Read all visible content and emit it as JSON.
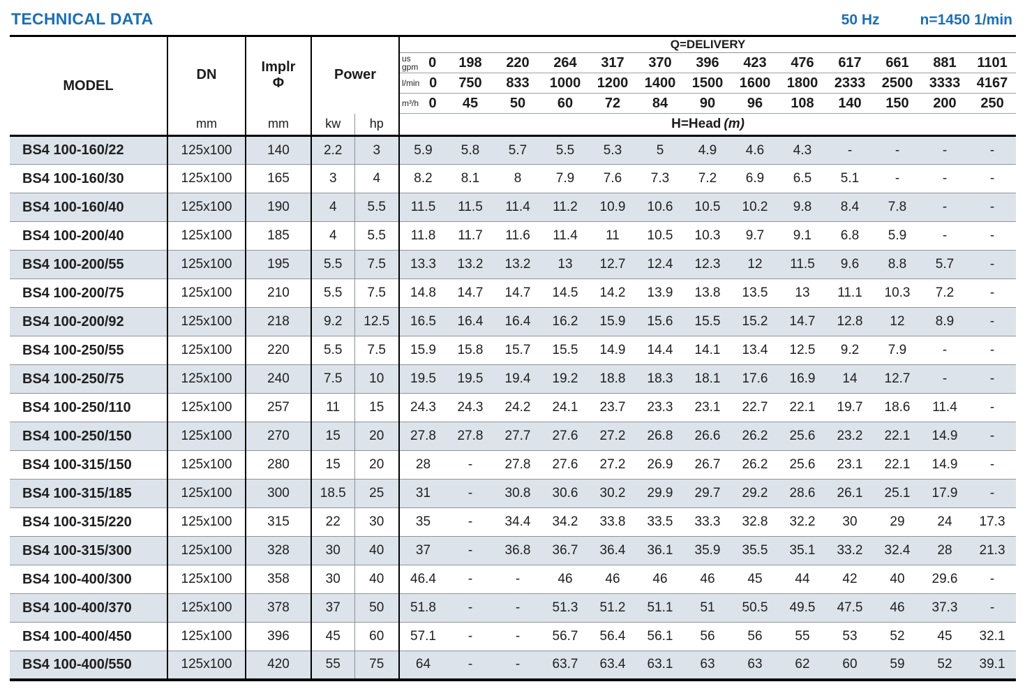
{
  "page": {
    "title": "TECHNICAL DATA",
    "freq": "50 Hz",
    "speed": "n=1450 1/min"
  },
  "colors": {
    "accent": "#1a6fb5",
    "row_shade": "#dce3ea"
  },
  "table": {
    "headers": {
      "model": "MODEL",
      "dn": "DN",
      "dn_unit": "mm",
      "implr_line1": "Implr",
      "implr_line2": "Φ",
      "implr_unit": "mm",
      "power": "Power",
      "kw": "kw",
      "hp": "hp",
      "delivery": "Q=DELIVERY",
      "head_label": "H=Head",
      "head_unit": "(m)",
      "unit_rows": [
        {
          "label": "us gpm",
          "label_lines": [
            "us",
            "gpm"
          ],
          "values": [
            "0",
            "198",
            "220",
            "264",
            "317",
            "370",
            "396",
            "423",
            "476",
            "617",
            "661",
            "881",
            "1101"
          ]
        },
        {
          "label": "l/min",
          "label_lines": [
            "l/min"
          ],
          "values": [
            "0",
            "750",
            "833",
            "1000",
            "1200",
            "1400",
            "1500",
            "1600",
            "1800",
            "2333",
            "2500",
            "3333",
            "4167"
          ]
        },
        {
          "label": "m³/h",
          "label_lines": [
            "m³/h"
          ],
          "values": [
            "0",
            "45",
            "50",
            "60",
            "72",
            "84",
            "90",
            "96",
            "108",
            "140",
            "150",
            "200",
            "250"
          ]
        }
      ]
    },
    "rows": [
      {
        "model": "BS4 100-160/22",
        "dn": "125x100",
        "implr": "140",
        "kw": "2.2",
        "hp": "3",
        "head": [
          "5.9",
          "5.8",
          "5.7",
          "5.5",
          "5.3",
          "5",
          "4.9",
          "4.6",
          "4.3",
          "-",
          "-",
          "-",
          "-"
        ]
      },
      {
        "model": "BS4 100-160/30",
        "dn": "125x100",
        "implr": "165",
        "kw": "3",
        "hp": "4",
        "head": [
          "8.2",
          "8.1",
          "8",
          "7.9",
          "7.6",
          "7.3",
          "7.2",
          "6.9",
          "6.5",
          "5.1",
          "-",
          "-",
          "-"
        ]
      },
      {
        "model": "BS4 100-160/40",
        "dn": "125x100",
        "implr": "190",
        "kw": "4",
        "hp": "5.5",
        "head": [
          "11.5",
          "11.5",
          "11.4",
          "11.2",
          "10.9",
          "10.6",
          "10.5",
          "10.2",
          "9.8",
          "8.4",
          "7.8",
          "-",
          "-"
        ]
      },
      {
        "model": "BS4 100-200/40",
        "dn": "125x100",
        "implr": "185",
        "kw": "4",
        "hp": "5.5",
        "head": [
          "11.8",
          "11.7",
          "11.6",
          "11.4",
          "11",
          "10.5",
          "10.3",
          "9.7",
          "9.1",
          "6.8",
          "5.9",
          "-",
          "-"
        ]
      },
      {
        "model": "BS4 100-200/55",
        "dn": "125x100",
        "implr": "195",
        "kw": "5.5",
        "hp": "7.5",
        "head": [
          "13.3",
          "13.2",
          "13.2",
          "13",
          "12.7",
          "12.4",
          "12.3",
          "12",
          "11.5",
          "9.6",
          "8.8",
          "5.7",
          "-"
        ]
      },
      {
        "model": "BS4 100-200/75",
        "dn": "125x100",
        "implr": "210",
        "kw": "5.5",
        "hp": "7.5",
        "head": [
          "14.8",
          "14.7",
          "14.7",
          "14.5",
          "14.2",
          "13.9",
          "13.8",
          "13.5",
          "13",
          "11.1",
          "10.3",
          "7.2",
          "-"
        ]
      },
      {
        "model": "BS4 100-200/92",
        "dn": "125x100",
        "implr": "218",
        "kw": "9.2",
        "hp": "12.5",
        "head": [
          "16.5",
          "16.4",
          "16.4",
          "16.2",
          "15.9",
          "15.6",
          "15.5",
          "15.2",
          "14.7",
          "12.8",
          "12",
          "8.9",
          "-"
        ]
      },
      {
        "model": "BS4 100-250/55",
        "dn": "125x100",
        "implr": "220",
        "kw": "5.5",
        "hp": "7.5",
        "head": [
          "15.9",
          "15.8",
          "15.7",
          "15.5",
          "14.9",
          "14.4",
          "14.1",
          "13.4",
          "12.5",
          "9.2",
          "7.9",
          "-",
          "-"
        ]
      },
      {
        "model": "BS4 100-250/75",
        "dn": "125x100",
        "implr": "240",
        "kw": "7.5",
        "hp": "10",
        "head": [
          "19.5",
          "19.5",
          "19.4",
          "19.2",
          "18.8",
          "18.3",
          "18.1",
          "17.6",
          "16.9",
          "14",
          "12.7",
          "-",
          "-"
        ]
      },
      {
        "model": "BS4 100-250/110",
        "dn": "125x100",
        "implr": "257",
        "kw": "11",
        "hp": "15",
        "head": [
          "24.3",
          "24.3",
          "24.2",
          "24.1",
          "23.7",
          "23.3",
          "23.1",
          "22.7",
          "22.1",
          "19.7",
          "18.6",
          "11.4",
          "-"
        ]
      },
      {
        "model": "BS4 100-250/150",
        "dn": "125x100",
        "implr": "270",
        "kw": "15",
        "hp": "20",
        "head": [
          "27.8",
          "27.8",
          "27.7",
          "27.6",
          "27.2",
          "26.8",
          "26.6",
          "26.2",
          "25.6",
          "23.2",
          "22.1",
          "14.9",
          "-"
        ]
      },
      {
        "model": "BS4 100-315/150",
        "dn": "125x100",
        "implr": "280",
        "kw": "15",
        "hp": "20",
        "head": [
          "28",
          "-",
          "27.8",
          "27.6",
          "27.2",
          "26.9",
          "26.7",
          "26.2",
          "25.6",
          "23.1",
          "22.1",
          "14.9",
          "-"
        ]
      },
      {
        "model": "BS4 100-315/185",
        "dn": "125x100",
        "implr": "300",
        "kw": "18.5",
        "hp": "25",
        "head": [
          "31",
          "-",
          "30.8",
          "30.6",
          "30.2",
          "29.9",
          "29.7",
          "29.2",
          "28.6",
          "26.1",
          "25.1",
          "17.9",
          "-"
        ]
      },
      {
        "model": "BS4 100-315/220",
        "dn": "125x100",
        "implr": "315",
        "kw": "22",
        "hp": "30",
        "head": [
          "35",
          "-",
          "34.4",
          "34.2",
          "33.8",
          "33.5",
          "33.3",
          "32.8",
          "32.2",
          "30",
          "29",
          "24",
          "17.3"
        ]
      },
      {
        "model": "BS4 100-315/300",
        "dn": "125x100",
        "implr": "328",
        "kw": "30",
        "hp": "40",
        "head": [
          "37",
          "-",
          "36.8",
          "36.7",
          "36.4",
          "36.1",
          "35.9",
          "35.5",
          "35.1",
          "33.2",
          "32.4",
          "28",
          "21.3"
        ]
      },
      {
        "model": "BS4 100-400/300",
        "dn": "125x100",
        "implr": "358",
        "kw": "30",
        "hp": "40",
        "head": [
          "46.4",
          "-",
          "-",
          "46",
          "46",
          "46",
          "46",
          "45",
          "44",
          "42",
          "40",
          "29.6",
          "-"
        ]
      },
      {
        "model": "BS4 100-400/370",
        "dn": "125x100",
        "implr": "378",
        "kw": "37",
        "hp": "50",
        "head": [
          "51.8",
          "-",
          "-",
          "51.3",
          "51.2",
          "51.1",
          "51",
          "50.5",
          "49.5",
          "47.5",
          "46",
          "37.3",
          "-"
        ]
      },
      {
        "model": "BS4 100-400/450",
        "dn": "125x100",
        "implr": "396",
        "kw": "45",
        "hp": "60",
        "head": [
          "57.1",
          "-",
          "-",
          "56.7",
          "56.4",
          "56.1",
          "56",
          "56",
          "55",
          "53",
          "52",
          "45",
          "32.1"
        ]
      },
      {
        "model": "BS4 100-400/550",
        "dn": "125x100",
        "implr": "420",
        "kw": "55",
        "hp": "75",
        "head": [
          "64",
          "-",
          "-",
          "63.7",
          "63.4",
          "63.1",
          "63",
          "63",
          "62",
          "60",
          "59",
          "52",
          "39.1"
        ]
      }
    ]
  }
}
